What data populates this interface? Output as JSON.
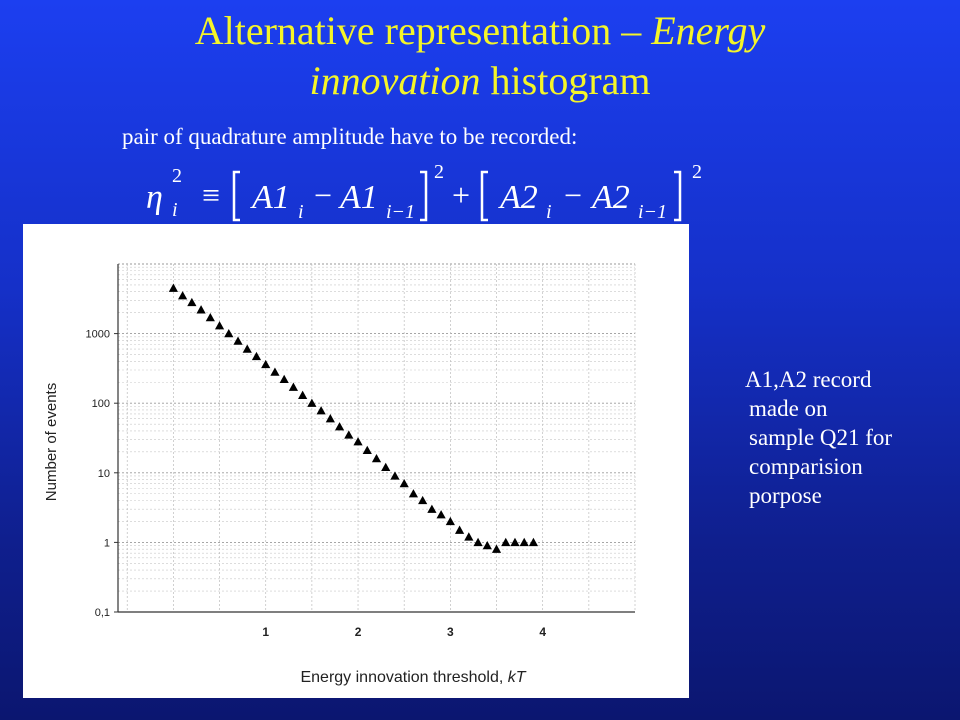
{
  "slide": {
    "title_part1": "Alternative representation – ",
    "title_italic1": "Energy",
    "title_italic2": "innovation",
    "title_part2": " histogram",
    "subtitle": "pair of quadrature amplitude have to be recorded:",
    "note_lines": [
      "A1,A2 record",
      "made on",
      "sample Q21 for",
      "comparision",
      "porpose"
    ],
    "text_color": "#ffffff",
    "title_color": "#f5f528"
  },
  "formula": {
    "lhs_symbol": "η",
    "lhs_sub": "i",
    "lhs_sup": "2",
    "equiv": "≡",
    "t1_a": "A1",
    "t1_a_sub": "i",
    "minus": "−",
    "t1_b": "A1",
    "t1_b_sub": "i−1",
    "sq": "2",
    "plus": "+",
    "t2_a": "A2",
    "t2_a_sub": "i",
    "t2_b": "A2",
    "t2_b_sub": "i−1"
  },
  "chart_data": {
    "type": "scatter",
    "xlabel": "Energy innovation threshold",
    "xlabel_unit": "kT",
    "ylabel": "Number of events",
    "y_scale": "log",
    "ylim": [
      0.1,
      10000
    ],
    "xlim": [
      -0.6,
      5.0
    ],
    "x_ticks": [
      1,
      2,
      3,
      4
    ],
    "x_tick_labels": [
      "1",
      "2",
      "3",
      "4"
    ],
    "y_ticks": [
      0.1,
      1,
      10,
      100,
      1000
    ],
    "y_tick_labels": [
      "0,1",
      "1",
      "10",
      "100",
      "1000"
    ],
    "grid": true,
    "marker": "triangle",
    "marker_color": "#000000",
    "series": [
      {
        "x": [
          0.0,
          0.1,
          0.2,
          0.3,
          0.4,
          0.5,
          0.6,
          0.7,
          0.8,
          0.9,
          1.0,
          1.1,
          1.2,
          1.3,
          1.4,
          1.5,
          1.6,
          1.7,
          1.8,
          1.9,
          2.0,
          2.1,
          2.2,
          2.3,
          2.4,
          2.5,
          2.6,
          2.7,
          2.8,
          2.9,
          3.0,
          3.1,
          3.2,
          3.3,
          3.4,
          3.5,
          3.6,
          3.7,
          3.8,
          3.9
        ],
        "y": [
          4500,
          3500,
          2800,
          2200,
          1700,
          1300,
          1000,
          780,
          600,
          470,
          360,
          280,
          220,
          170,
          130,
          100,
          78,
          60,
          46,
          35,
          28,
          21,
          16,
          12,
          9,
          7,
          5,
          4,
          3,
          2.5,
          2,
          1.5,
          1.2,
          1.0,
          0.9,
          0.8,
          1,
          1,
          1,
          1
        ]
      }
    ]
  }
}
